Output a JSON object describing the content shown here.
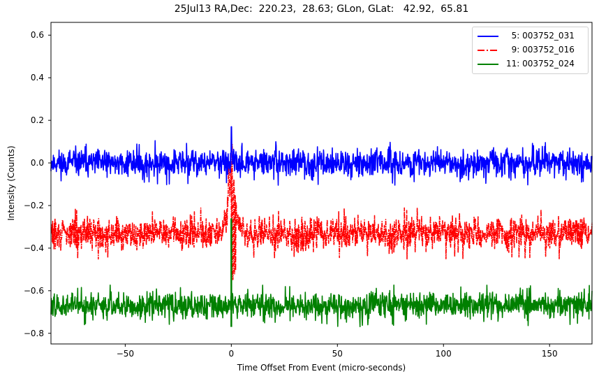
{
  "chart_data": {
    "type": "line",
    "title": "25Jul13 RA,Dec:  220.23,  28.63; GLon, GLat:   42.92,  65.81",
    "xlabel": "Time Offset From Event (micro-seconds)",
    "ylabel": "Intensity (Counts)",
    "xlim": [
      -85,
      170
    ],
    "ylim": [
      -0.85,
      0.66
    ],
    "xticks": [
      -50,
      0,
      50,
      100,
      150
    ],
    "xtick_labels": [
      "−50",
      "0",
      "50",
      "100",
      "150"
    ],
    "yticks": [
      0.6,
      0.4,
      0.2,
      0.0,
      -0.2,
      -0.4,
      -0.6,
      -0.8
    ],
    "ytick_labels": [
      "0.6",
      "0.4",
      "0.2",
      "0.0",
      "−0.2",
      "−0.4",
      "−0.6",
      "−0.8"
    ],
    "grid": false,
    "legend_position": "upper right",
    "series": [
      {
        "name": "  5: 003752_031",
        "color": "#0000ff",
        "linestyle": "solid",
        "baseline": 0.0,
        "noise_range": [
          -0.12,
          0.09
        ],
        "event_peak": 0.17,
        "event_x": 0
      },
      {
        "name": "  9: 003752_016",
        "color": "#ff0000",
        "linestyle": "dashdot",
        "baseline": -0.33,
        "noise_range": [
          -0.45,
          -0.2
        ],
        "event_peak": 0.04,
        "event_trough": -0.55,
        "event_x": 0
      },
      {
        "name": "11: 003752_024",
        "color": "#008000",
        "linestyle": "solid",
        "baseline": -0.67,
        "noise_range": [
          -0.76,
          -0.56
        ],
        "event_peak": -0.26,
        "event_trough": -0.77,
        "event_x": 0
      }
    ]
  },
  "legend": {
    "items": [
      {
        "label": "  5: 003752_031",
        "color": "#0000ff",
        "style": "solid"
      },
      {
        "label": "  9: 003752_016",
        "color": "#ff0000",
        "style": "dashdot"
      },
      {
        "label": "11: 003752_024",
        "color": "#008000",
        "style": "solid"
      }
    ]
  }
}
